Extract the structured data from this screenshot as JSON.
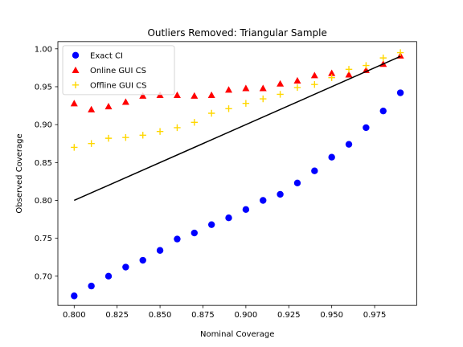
{
  "chart_data": {
    "type": "scatter",
    "title": "Outliers Removed: Triangular Sample",
    "xlabel": "Nominal Coverage",
    "ylabel": "Observed Coverage",
    "xlim": [
      0.7905,
      0.9995
    ],
    "ylim": [
      0.6615,
      1.0095
    ],
    "xticks": [
      0.8,
      0.825,
      0.85,
      0.875,
      0.9,
      0.925,
      0.95,
      0.975
    ],
    "xtick_labels": [
      "0.800",
      "0.825",
      "0.850",
      "0.875",
      "0.900",
      "0.925",
      "0.950",
      "0.975"
    ],
    "yticks": [
      0.7,
      0.75,
      0.8,
      0.85,
      0.9,
      0.95,
      1.0
    ],
    "ytick_labels": [
      "0.70",
      "0.75",
      "0.80",
      "0.85",
      "0.90",
      "0.95",
      "1.00"
    ],
    "grid": false,
    "legend_position": "top-left",
    "x": [
      0.8,
      0.81,
      0.82,
      0.83,
      0.84,
      0.85,
      0.86,
      0.87,
      0.88,
      0.89,
      0.9,
      0.91,
      0.92,
      0.93,
      0.94,
      0.95,
      0.96,
      0.97,
      0.98,
      0.99
    ],
    "series": [
      {
        "name": "Exact CI",
        "marker": "circle",
        "color": "#0000ff",
        "values": [
          0.674,
          0.687,
          0.7,
          0.712,
          0.721,
          0.734,
          0.749,
          0.757,
          0.768,
          0.777,
          0.788,
          0.8,
          0.808,
          0.823,
          0.839,
          0.857,
          0.874,
          0.896,
          0.918,
          0.942
        ]
      },
      {
        "name": "Online GUI CS",
        "marker": "triangle",
        "color": "#ff0000",
        "values": [
          0.928,
          0.92,
          0.924,
          0.93,
          0.938,
          0.939,
          0.939,
          0.938,
          0.939,
          0.946,
          0.948,
          0.948,
          0.954,
          0.958,
          0.965,
          0.968,
          0.966,
          0.972,
          0.98,
          0.991
        ]
      },
      {
        "name": "Offline GUI CS",
        "marker": "plus",
        "color": "#ffd700",
        "values": [
          0.87,
          0.875,
          0.882,
          0.883,
          0.886,
          0.891,
          0.896,
          0.903,
          0.915,
          0.921,
          0.928,
          0.934,
          0.94,
          0.949,
          0.953,
          0.962,
          0.973,
          0.978,
          0.988,
          0.995
        ]
      }
    ],
    "reference_line": {
      "color": "#000000",
      "x": [
        0.8,
        0.99
      ],
      "y": [
        0.8,
        0.99
      ]
    }
  }
}
